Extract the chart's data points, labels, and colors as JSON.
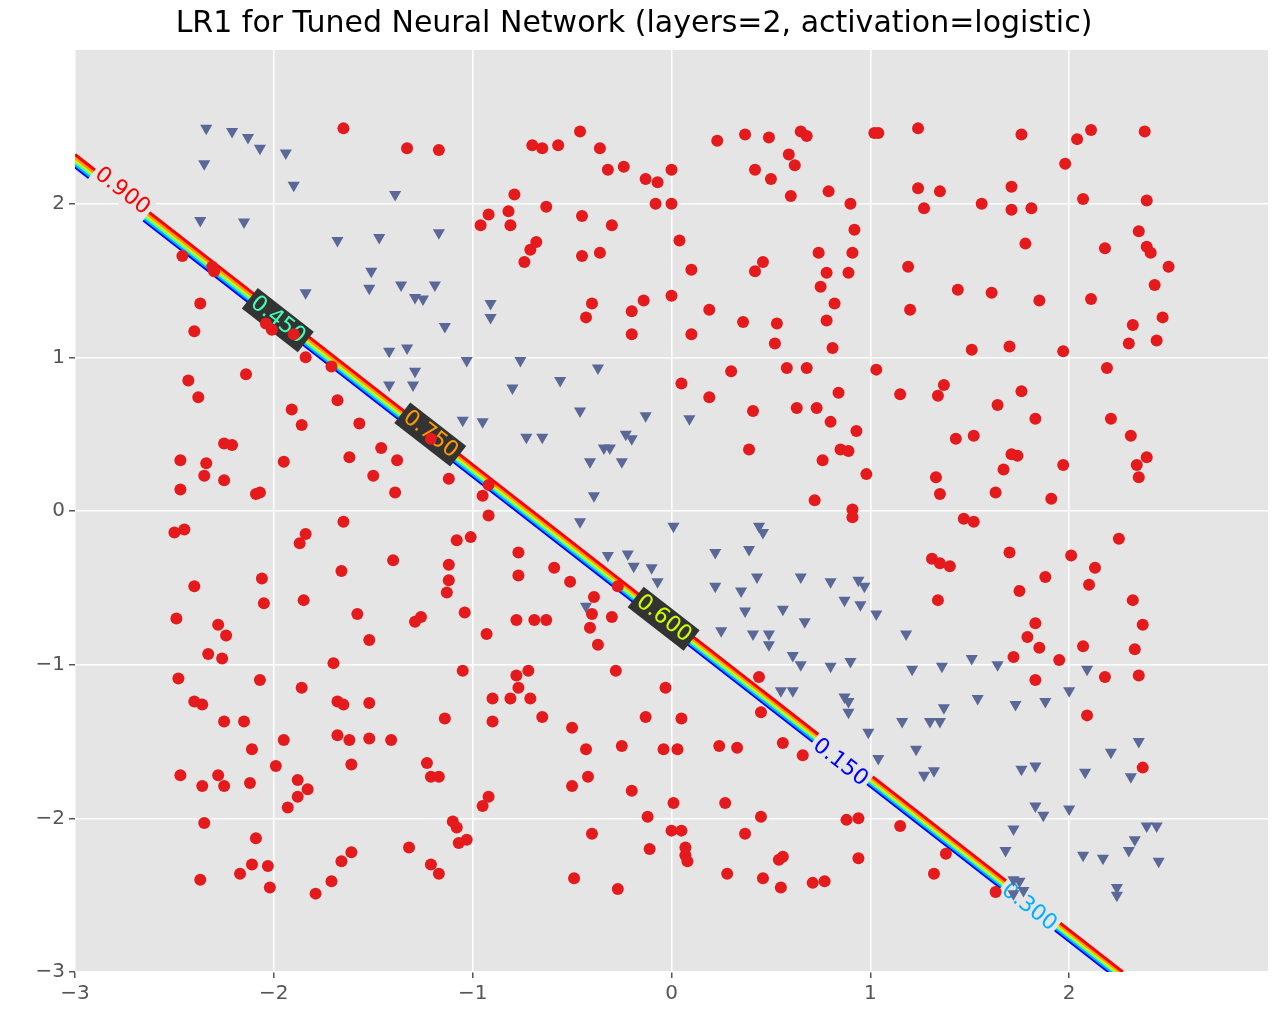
{
  "chart_data": {
    "type": "scatter",
    "title": "LR1 for Tuned Neural Network (layers=2, activation=logistic)",
    "xlim": [
      -3,
      3
    ],
    "ylim": [
      -3,
      3
    ],
    "xticks": [
      {
        "value": -3,
        "label": "−3"
      },
      {
        "value": -2,
        "label": "−2"
      },
      {
        "value": -1,
        "label": "−1"
      },
      0,
      1,
      2
    ],
    "yticks": [
      {
        "value": -3,
        "label": "−3"
      },
      {
        "value": -2,
        "label": "−2"
      },
      {
        "value": -1,
        "label": "−1"
      },
      0,
      1,
      2
    ],
    "grid": true,
    "legend": false,
    "series": [
      {
        "type": "scatter",
        "color": "#e41a1c",
        "marker": "circle",
        "x": [
          -1.65,
          -1.33,
          -1.17,
          -0.46,
          -0.7,
          -0.65,
          -0.57,
          -0.36,
          -0.32,
          -0.24,
          -0.13,
          -0.07,
          0.0,
          0.0,
          -0.08,
          0.23,
          0.37,
          0.49,
          0.65,
          0.68,
          0.59,
          0.62,
          0.42,
          0.5,
          0.79,
          0.6,
          0.9,
          -0.79,
          -0.63,
          -0.82,
          -0.92,
          -0.96,
          -0.81,
          -0.68,
          -0.71,
          -0.74,
          -0.45,
          -0.3,
          -0.36,
          -0.45,
          0.04,
          0.1,
          -0.4,
          -0.43,
          -0.2,
          -0.14,
          -0.2,
          0.0,
          0.1,
          0.19,
          0.36,
          0.46,
          0.42,
          0.53,
          0.52,
          0.74,
          0.75,
          0.82,
          0.78,
          0.89,
          0.91,
          0.92,
          0.78,
          0.81,
          0.58,
          0.68,
          0.3,
          0.05,
          0.19,
          0.41,
          0.39,
          0.63,
          0.73,
          0.8,
          0.84,
          0.85,
          0.89,
          0.93,
          0.98,
          0.76,
          0.72,
          0.91,
          0.91,
          1.03,
          1.24,
          1.24,
          1.27,
          1.35,
          1.19,
          1.2,
          1.02,
          1.04,
          1.71,
          1.81,
          1.71,
          1.78,
          1.98,
          2.11,
          2.04,
          2.07,
          2.18,
          2.38,
          2.39,
          2.35,
          2.39,
          2.41,
          2.43,
          2.47,
          2.5,
          2.44,
          2.3,
          2.32,
          2.11,
          1.97,
          2.31,
          2.34,
          2.39,
          2.35,
          1.85,
          1.7,
          1.83,
          1.64,
          1.76,
          1.74,
          1.71,
          1.52,
          1.67,
          1.97,
          1.91,
          2.21,
          2.19,
          1.51,
          1.44,
          1.56,
          1.61,
          1.76,
          1.34,
          1.37,
          1.15,
          1.43,
          1.33,
          1.35,
          1.47,
          1.52,
          1.63,
          -2.46,
          -2.37,
          -2.31,
          -2.3,
          -2.4,
          -2.43,
          -2.38,
          -2.14,
          -2.25,
          -2.21,
          -2.34,
          -2.35,
          -2.25,
          -2.47,
          -2.47,
          -2.45,
          -2.5,
          -2.04,
          -2.01,
          -1.9,
          -1.84,
          -1.91,
          -1.86,
          -1.95,
          -2.07,
          -2.09,
          -1.71,
          -1.68,
          -1.62,
          -1.57,
          -1.5,
          -1.46,
          -1.39,
          -1.38,
          -1.21,
          -1.12,
          -0.95,
          -0.92,
          -0.92,
          -1.65,
          -1.84,
          -1.87,
          -2.06,
          -2.05,
          -2.28,
          -2.24,
          -2.33,
          -2.26,
          -2.49,
          -2.4,
          -2.48,
          -2.07,
          -2.4,
          -2.36,
          -2.15,
          -2.25,
          -2.11,
          -2.47,
          -2.28,
          -2.36,
          -2.25,
          -2.12,
          -2.35,
          -2.09,
          -2.37,
          -2.17,
          -2.11,
          -2.03,
          -2.02,
          -1.99,
          -1.95,
          -1.86,
          -1.85,
          -1.66,
          -1.58,
          -1.52,
          -1.7,
          -1.68,
          -1.65,
          -1.52,
          -1.62,
          -1.52,
          -1.68,
          -1.61,
          -1.41,
          -1.4,
          -1.29,
          -1.26,
          -1.12,
          -1.12,
          -1.13,
          -1.08,
          -1.01,
          -1.04,
          -1.05,
          -1.14,
          -0.93,
          -0.9,
          -0.9,
          -1.23,
          -1.21,
          -1.17,
          -1.88,
          -1.88,
          -1.83,
          -1.93,
          -1.1,
          -1.08,
          -1.07,
          -1.03,
          -0.95,
          -0.92,
          -1.32,
          -1.21,
          -1.17,
          -1.66,
          -1.61,
          -1.71,
          -1.79,
          -0.77,
          -0.77,
          -0.78,
          -0.69,
          -0.63,
          -0.78,
          -0.77,
          -0.81,
          -0.71,
          -0.65,
          -0.72,
          -0.59,
          -0.51,
          -0.39,
          -0.41,
          -0.37,
          -0.28,
          -0.3,
          -0.4,
          -0.27,
          -0.5,
          -0.43,
          -0.42,
          -0.5,
          -0.4,
          -0.49,
          -0.27,
          -0.25,
          -0.2,
          -0.12,
          -0.11,
          0.0,
          0.05,
          0.01,
          0.07,
          0.08,
          0.07,
          0.03,
          0.05,
          -0.03,
          -0.13,
          -0.04,
          0.27,
          0.28,
          0.46,
          0.45,
          0.37,
          0.24,
          0.33,
          0.44,
          0.45,
          0.56,
          0.66,
          0.55,
          0.54,
          0.56,
          0.77,
          0.71,
          0.88,
          0.94,
          0.94,
          1.15,
          1.38,
          1.32,
          1.63,
          1.7,
          1.31,
          1.35,
          1.4,
          2.01,
          2.13,
          2.25,
          1.88,
          2.1,
          1.75,
          1.34,
          2.32,
          2.37,
          1.83,
          1.79,
          1.85,
          2.07,
          2.33,
          1.72,
          1.95,
          1.83,
          2.18,
          2.35,
          2.09,
          2.37
        ],
        "values": [
          2.49,
          2.36,
          2.35,
          2.47,
          2.38,
          2.36,
          2.38,
          2.36,
          2.22,
          2.24,
          2.16,
          2.14,
          2.22,
          2.0,
          2.0,
          2.41,
          2.45,
          2.43,
          2.47,
          2.44,
          2.32,
          2.25,
          2.22,
          2.16,
          2.08,
          2.05,
          2.0,
          2.06,
          1.98,
          1.95,
          1.93,
          1.86,
          1.86,
          1.75,
          1.7,
          1.62,
          1.92,
          1.86,
          1.68,
          1.66,
          1.76,
          1.57,
          1.35,
          1.26,
          1.3,
          1.37,
          1.15,
          1.4,
          1.15,
          1.31,
          1.23,
          1.62,
          1.56,
          1.22,
          1.09,
          1.68,
          1.46,
          1.35,
          1.55,
          1.55,
          1.68,
          1.83,
          1.24,
          1.06,
          0.93,
          0.93,
          0.91,
          0.83,
          0.74,
          0.65,
          0.4,
          0.67,
          0.67,
          0.58,
          0.77,
          0.4,
          0.39,
          0.52,
          0.24,
          0.33,
          0.07,
          0.01,
          -0.04,
          0.92,
          2.49,
          2.1,
          1.97,
          2.08,
          1.59,
          1.31,
          2.46,
          2.46,
          1.96,
          1.97,
          2.11,
          1.74,
          2.26,
          2.48,
          2.42,
          2.03,
          1.71,
          2.47,
          2.02,
          1.82,
          1.72,
          1.68,
          1.47,
          1.26,
          1.59,
          1.11,
          1.09,
          1.21,
          1.38,
          1.04,
          0.49,
          0.3,
          0.35,
          0.22,
          1.37,
          1.07,
          0.6,
          0.69,
          0.78,
          0.36,
          0.37,
          0.49,
          0.27,
          0.3,
          0.08,
          0.6,
          0.93,
          1.05,
          1.44,
          2.0,
          1.42,
          2.45,
          0.75,
          0.82,
          0.76,
          0.47,
          0.22,
          0.11,
          -0.05,
          -0.07,
          0.12,
          1.66,
          1.35,
          1.59,
          1.56,
          1.17,
          0.85,
          0.74,
          0.89,
          0.44,
          0.43,
          0.31,
          0.23,
          0.2,
          0.33,
          0.14,
          -0.12,
          -0.14,
          1.22,
          1.18,
          1.15,
          1.0,
          0.66,
          0.56,
          0.32,
          0.12,
          0.11,
          0.94,
          0.72,
          0.35,
          0.57,
          0.23,
          0.41,
          0.12,
          0.33,
          0.47,
          0.21,
          0.1,
          -0.03,
          0.17,
          -0.07,
          -0.15,
          -0.21,
          -0.44,
          -0.6,
          -0.74,
          -0.81,
          -0.93,
          -0.96,
          -0.7,
          -0.49,
          -1.09,
          -1.1,
          -1.24,
          -1.26,
          -1.37,
          -1.37,
          -1.55,
          -1.72,
          -1.72,
          -1.79,
          -1.79,
          -1.77,
          -2.03,
          -2.13,
          -2.4,
          -2.36,
          -2.3,
          -2.31,
          -2.45,
          -1.66,
          -1.49,
          -1.15,
          -0.58,
          -0.39,
          -0.67,
          -0.84,
          -0.99,
          -1.24,
          -1.26,
          -1.25,
          -1.49,
          -1.48,
          -1.46,
          -1.65,
          -1.49,
          -0.32,
          -0.72,
          -0.69,
          -0.35,
          -0.45,
          -0.53,
          -0.19,
          -0.17,
          -0.66,
          -1.04,
          -1.35,
          -0.8,
          -1.22,
          -1.37,
          -1.64,
          -1.73,
          -1.73,
          -1.75,
          -1.86,
          -1.81,
          -1.93,
          -2.02,
          -2.06,
          -2.16,
          -2.14,
          -1.92,
          -1.86,
          -2.19,
          -2.3,
          -2.36,
          -2.28,
          -2.22,
          -2.41,
          -2.49,
          -0.27,
          -0.42,
          -0.71,
          -0.71,
          -0.71,
          -1.07,
          -1.15,
          -1.22,
          -1.22,
          -1.34,
          -1.04,
          -0.37,
          -0.46,
          -0.56,
          -0.76,
          -0.87,
          -1.04,
          -0.69,
          -0.67,
          -0.49,
          -1.41,
          -1.55,
          -1.73,
          -1.79,
          -2.1,
          -2.39,
          -2.46,
          -1.53,
          -1.82,
          -1.99,
          -2.2,
          -2.08,
          -2.08,
          -1.9,
          -2.24,
          -2.28,
          -2.19,
          -1.55,
          -1.35,
          -1.15,
          -1.34,
          -1.55,
          -1.9,
          -2.36,
          -2.39,
          -1.99,
          -2.1,
          -1.53,
          -1.54,
          -1.08,
          -1.31,
          -1.51,
          -1.59,
          -2.45,
          -2.27,
          -2.25,
          -2.41,
          -2.42,
          -2.01,
          -2.0,
          -2.26,
          -2.05,
          -2.23,
          -2.36,
          -2.48,
          -0.27,
          -0.31,
          -0.34,
          -0.36,
          -0.29,
          -0.37,
          -0.18,
          -0.43,
          -0.48,
          -0.52,
          -0.58,
          -0.58,
          -0.74,
          -0.73,
          -0.82,
          -0.89,
          -0.88,
          -0.9,
          -0.95,
          -0.97,
          -1.1,
          -1.08,
          -1.07,
          -1.33,
          -1.67
        ]
      },
      {
        "type": "scatter",
        "color": "#5a6898",
        "marker": "triangle",
        "x": [
          -2.34,
          -2.21,
          -2.13,
          -2.07,
          -1.94,
          -2.35,
          -1.9,
          -1.39,
          -2.37,
          -2.15,
          -1.68,
          -1.47,
          -1.17,
          -1.51,
          -1.36,
          -1.84,
          -1.52,
          -1.19,
          -1.29,
          -1.25,
          -0.91,
          -0.91,
          -1.14,
          -1.42,
          -1.33,
          -1.03,
          -0.76,
          -0.8,
          -1.42,
          -1.29,
          -1.3,
          -0.56,
          -0.37,
          -0.46,
          -1.05,
          -0.95,
          -0.13,
          0.09,
          -0.73,
          -0.65,
          -0.34,
          -0.31,
          -0.23,
          -0.2,
          -0.41,
          -0.25,
          -0.39,
          -0.46,
          0.01,
          -0.32,
          -0.22,
          -0.19,
          -0.1,
          -0.07,
          -0.43,
          0.22,
          0.39,
          0.44,
          0.46,
          0.22,
          0.35,
          0.43,
          0.65,
          0.8,
          0.94,
          0.97,
          0.37,
          0.56,
          0.49,
          0.67,
          0.87,
          0.95,
          1.03,
          0.25,
          0.41,
          0.49,
          0.61,
          0.65,
          0.8,
          0.9,
          0.55,
          0.61,
          0.87,
          0.89,
          0.89,
          0.99,
          1.04,
          1.18,
          1.21,
          1.36,
          1.51,
          1.64,
          1.54,
          1.35,
          1.37,
          1.3,
          1.16,
          1.23,
          1.32,
          1.27,
          1.73,
          1.88,
          2.0,
          2.09,
          1.83,
          1.76,
          2.08,
          2.21,
          2.31,
          2.35,
          1.83,
          1.87,
          2.0,
          1.72,
          1.68,
          2.07,
          2.17,
          2.3,
          2.33,
          2.39,
          2.44,
          2.45,
          2.24,
          2.24,
          1.72,
          1.75,
          1.72,
          1.77
        ],
        "values": [
          2.49,
          2.47,
          2.43,
          2.36,
          2.33,
          2.26,
          2.12,
          2.06,
          1.89,
          1.88,
          1.76,
          1.78,
          1.81,
          1.56,
          1.47,
          1.42,
          1.45,
          1.47,
          1.39,
          1.38,
          1.35,
          1.26,
          1.2,
          1.04,
          1.06,
          0.98,
          0.98,
          0.8,
          0.82,
          0.91,
          0.82,
          0.85,
          0.93,
          0.65,
          0.59,
          0.58,
          0.62,
          0.6,
          0.48,
          0.48,
          0.41,
          0.41,
          0.5,
          0.47,
          0.32,
          0.32,
          0.1,
          -0.07,
          -0.1,
          -0.29,
          -0.28,
          -0.36,
          -0.37,
          -0.46,
          -0.62,
          -0.27,
          -0.25,
          -0.1,
          -0.14,
          -0.49,
          -0.52,
          -0.43,
          -0.43,
          -0.46,
          -0.45,
          -0.49,
          -0.65,
          -0.64,
          -0.8,
          -0.72,
          -0.58,
          -0.61,
          -0.67,
          -0.78,
          -0.8,
          -0.87,
          -0.94,
          -1.0,
          -1.01,
          -0.98,
          -1.17,
          -1.17,
          -1.21,
          -1.24,
          -1.31,
          -1.44,
          -1.61,
          -0.8,
          -1.03,
          -1.01,
          -0.96,
          -1.0,
          -1.22,
          -1.37,
          -1.28,
          -1.37,
          -1.37,
          -1.55,
          -1.69,
          -1.72,
          -1.26,
          -1.24,
          -1.17,
          -1.03,
          -1.66,
          -1.68,
          -1.7,
          -1.57,
          -1.73,
          -1.5,
          -1.92,
          -1.98,
          -1.94,
          -2.07,
          -2.21,
          -2.24,
          -2.26,
          -2.21,
          -2.14,
          -2.05,
          -2.05,
          -2.28,
          -2.45,
          -2.5,
          -2.4,
          -2.41,
          -2.49,
          -2.47
        ]
      },
      {
        "type": "line",
        "name": "0.900",
        "color": "#ff0000",
        "marker": "none",
        "x": [
          -3,
          2.27
        ],
        "values": [
          2.32,
          -3
        ]
      },
      {
        "type": "line",
        "name": "0.750",
        "color": "#ff9900",
        "marker": "none",
        "x": [
          -3,
          2.255
        ],
        "values": [
          2.3,
          -3
        ]
      },
      {
        "type": "line",
        "name": "0.600",
        "color": "#ccff00",
        "marker": "none",
        "x": [
          -3,
          2.24
        ],
        "values": [
          2.285,
          -3
        ]
      },
      {
        "type": "line",
        "name": "0.450",
        "color": "#40ffb0",
        "marker": "none",
        "x": [
          -3,
          2.23
        ],
        "values": [
          2.27,
          -3
        ]
      },
      {
        "type": "line",
        "name": "0.300",
        "color": "#00b0ff",
        "marker": "none",
        "x": [
          -3,
          2.215
        ],
        "values": [
          2.255,
          -3
        ]
      },
      {
        "type": "line",
        "name": "0.150",
        "color": "#0000ff",
        "marker": "none",
        "x": [
          -3,
          2.2
        ],
        "values": [
          2.24,
          -3
        ]
      }
    ]
  }
}
